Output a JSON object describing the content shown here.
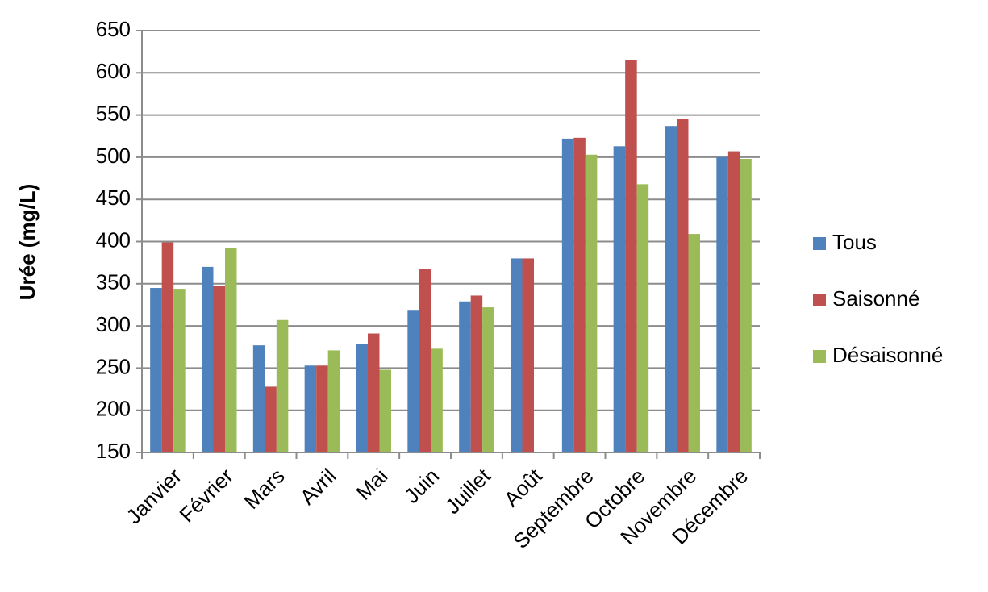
{
  "chart_data": {
    "type": "bar",
    "y_label": "Urée (mg/L)",
    "categories": [
      "Janvier",
      "Février",
      "Mars",
      "Avril",
      "Mai",
      "Juin",
      "Juillet",
      "Août",
      "Septembre",
      "Octobre",
      "Novembre",
      "Décembre"
    ],
    "series": [
      {
        "name": "Tous",
        "color": "#4f81bd",
        "values": [
          345,
          370,
          277,
          253,
          279,
          319,
          329,
          380,
          522,
          513,
          537,
          500
        ]
      },
      {
        "name": "Saisonné",
        "color": "#c0504d",
        "values": [
          399,
          347,
          228,
          253,
          291,
          367,
          336,
          380,
          523,
          615,
          545,
          507
        ]
      },
      {
        "name": "Désaisonné",
        "color": "#9bbb59",
        "values": [
          344,
          392,
          307,
          271,
          248,
          273,
          322,
          null,
          503,
          468,
          409,
          498
        ]
      }
    ],
    "ylim": [
      150,
      650
    ],
    "yticks": [
      150,
      200,
      250,
      300,
      350,
      400,
      450,
      500,
      550,
      600,
      650
    ],
    "grid": true,
    "legend": "right"
  }
}
